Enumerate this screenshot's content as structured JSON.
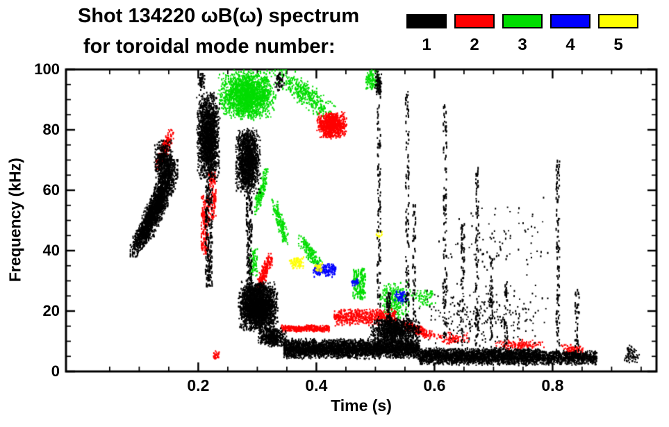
{
  "chart_data": {
    "type": "scatter",
    "subtype": "mode-spectrogram",
    "title": "Shot 134220 ωB(ω) spectrum",
    "subtitle": "for toroidal mode number:",
    "xlabel": "Time (s)",
    "ylabel": "Frequency (kHz)",
    "xlim": [
      -0.024,
      0.976
    ],
    "ylim": [
      0,
      100
    ],
    "x_minor_step": 0.05,
    "y_minor_step": 5,
    "grid": false,
    "legend_position": "top-right",
    "xticks": [
      {
        "v": 0.2,
        "label": "0.2"
      },
      {
        "v": 0.4,
        "label": "0.4"
      },
      {
        "v": 0.6,
        "label": "0.6"
      },
      {
        "v": 0.8,
        "label": "0.8"
      }
    ],
    "yticks": [
      {
        "v": 0,
        "label": "0"
      },
      {
        "v": 20,
        "label": "20"
      },
      {
        "v": 40,
        "label": "40"
      },
      {
        "v": 60,
        "label": "60"
      },
      {
        "v": 80,
        "label": "80"
      },
      {
        "v": 100,
        "label": "100"
      }
    ],
    "series": [
      {
        "name": "1",
        "mode": 1,
        "color": "#000000",
        "clusters": [
          {
            "shape": "diag",
            "t": [
              0.085,
              0.135
            ],
            "f": [
              38,
              56
            ],
            "n": 700
          },
          {
            "shape": "diag",
            "t": [
              0.105,
              0.165
            ],
            "f": [
              44,
              70
            ],
            "n": 1500
          },
          {
            "shape": "blob",
            "t": [
              0.125,
              0.158
            ],
            "f": [
              62,
              77
            ],
            "n": 450
          },
          {
            "shape": "blob",
            "t": [
              0.197,
              0.237
            ],
            "f": [
              62,
              93
            ],
            "n": 1900
          },
          {
            "shape": "vline",
            "t": [
              0.212,
              0.224
            ],
            "f": [
              28,
              62
            ],
            "n": 200
          },
          {
            "shape": "blob",
            "t": [
              0.199,
              0.212
            ],
            "f": [
              93,
              99
            ],
            "n": 60
          },
          {
            "shape": "blob",
            "t": [
              0.262,
              0.306
            ],
            "f": [
              58,
              81
            ],
            "n": 1500
          },
          {
            "shape": "vline",
            "t": [
              0.281,
              0.291
            ],
            "f": [
              25,
              58
            ],
            "n": 170
          },
          {
            "shape": "blob",
            "t": [
              0.267,
              0.336
            ],
            "f": [
              13,
              30
            ],
            "n": 2600
          },
          {
            "shape": "blob",
            "t": [
              0.3,
              0.35
            ],
            "f": [
              8,
              15
            ],
            "n": 500
          },
          {
            "shape": "blob",
            "t": [
              0.33,
              0.347
            ],
            "f": [
              92,
              100
            ],
            "n": 60
          },
          {
            "shape": "band",
            "t": [
              0.345,
              0.575
            ],
            "f": [
              4,
              11
            ],
            "n": 3600
          },
          {
            "shape": "blob",
            "t": [
              0.49,
              0.578
            ],
            "f": [
              9,
              18
            ],
            "n": 1000
          },
          {
            "shape": "vline",
            "t": [
              0.519,
              0.526
            ],
            "f": [
              15,
              26
            ],
            "n": 60
          },
          {
            "shape": "band",
            "t": [
              0.575,
              0.78
            ],
            "f": [
              2,
              8
            ],
            "n": 2500
          },
          {
            "shape": "band",
            "t": [
              0.78,
              0.875
            ],
            "f": [
              2,
              7
            ],
            "n": 800
          },
          {
            "shape": "blob",
            "t": [
              0.92,
              0.947
            ],
            "f": [
              2,
              9
            ],
            "n": 70
          },
          {
            "shape": "vline",
            "t": [
              0.503,
              0.509
            ],
            "f": [
              10,
              98
            ],
            "n": 130
          },
          {
            "shape": "blob",
            "t": [
              0.499,
              0.511
            ],
            "f": [
              91,
              100
            ],
            "n": 80
          },
          {
            "shape": "vline",
            "t": [
              0.551,
              0.557
            ],
            "f": [
              10,
              93
            ],
            "n": 120
          },
          {
            "shape": "vline",
            "t": [
              0.563,
              0.568
            ],
            "f": [
              10,
              55
            ],
            "n": 60
          },
          {
            "shape": "vline",
            "t": [
              0.615,
              0.621
            ],
            "f": [
              10,
              88
            ],
            "n": 110
          },
          {
            "shape": "vline",
            "t": [
              0.645,
              0.651
            ],
            "f": [
              8,
              50
            ],
            "n": 60
          },
          {
            "shape": "vline",
            "t": [
              0.669,
              0.675
            ],
            "f": [
              8,
              68
            ],
            "n": 90
          },
          {
            "shape": "vline",
            "t": [
              0.693,
              0.699
            ],
            "f": [
              8,
              38
            ],
            "n": 50
          },
          {
            "shape": "vline",
            "t": [
              0.718,
              0.724
            ],
            "f": [
              8,
              30
            ],
            "n": 40
          },
          {
            "shape": "vline",
            "t": [
              0.806,
              0.812
            ],
            "f": [
              5,
              70
            ],
            "n": 110
          },
          {
            "shape": "vline",
            "t": [
              0.838,
              0.845
            ],
            "f": [
              5,
              28
            ],
            "n": 45
          },
          {
            "shape": "blob",
            "t": [
              0.56,
              0.8
            ],
            "f": [
              8,
              30
            ],
            "n": 260
          },
          {
            "shape": "blob",
            "t": [
              0.6,
              0.8
            ],
            "f": [
              30,
              58
            ],
            "n": 90
          }
        ]
      },
      {
        "name": "2",
        "mode": 2,
        "color": "#ff0000",
        "clusters": [
          {
            "shape": "diag",
            "t": [
              0.128,
              0.158
            ],
            "f": [
              67,
              80
            ],
            "n": 230
          },
          {
            "shape": "vline",
            "t": [
              0.205,
              0.218
            ],
            "f": [
              38,
              58
            ],
            "n": 140
          },
          {
            "shape": "vline",
            "t": [
              0.218,
              0.23
            ],
            "f": [
              50,
              66
            ],
            "n": 100
          },
          {
            "shape": "diag",
            "t": [
              0.298,
              0.325
            ],
            "f": [
              26,
              39
            ],
            "n": 220
          },
          {
            "shape": "blob",
            "t": [
              0.4,
              0.452
            ],
            "f": [
              77,
              86
            ],
            "n": 850
          },
          {
            "shape": "band",
            "t": [
              0.34,
              0.422
            ],
            "f": [
              13,
              15.5
            ],
            "n": 380
          },
          {
            "shape": "band",
            "t": [
              0.43,
              0.535
            ],
            "f": [
              15,
              21
            ],
            "n": 560
          },
          {
            "shape": "diagdown",
            "t": [
              0.535,
              0.6
            ],
            "f": [
              11,
              17
            ],
            "n": 260
          },
          {
            "shape": "blob",
            "t": [
              0.6,
              0.66
            ],
            "f": [
              9,
              13
            ],
            "n": 90
          },
          {
            "shape": "blob",
            "t": [
              0.7,
              0.79
            ],
            "f": [
              7,
              11
            ],
            "n": 130
          },
          {
            "shape": "blob",
            "t": [
              0.815,
              0.855
            ],
            "f": [
              5,
              9
            ],
            "n": 100
          },
          {
            "shape": "blob",
            "t": [
              0.225,
              0.237
            ],
            "f": [
              4,
              7
            ],
            "n": 30
          }
        ]
      },
      {
        "name": "3",
        "mode": 3,
        "color": "#00dd00",
        "clusters": [
          {
            "shape": "blob",
            "t": [
              0.233,
              0.332
            ],
            "f": [
              83,
              100
            ],
            "n": 1900
          },
          {
            "shape": "diagdown",
            "t": [
              0.33,
              0.432
            ],
            "f": [
              84,
              100
            ],
            "n": 380
          },
          {
            "shape": "diag",
            "t": [
              0.295,
              0.318
            ],
            "f": [
              52,
              67
            ],
            "n": 170
          },
          {
            "shape": "diagdown",
            "t": [
              0.325,
              0.352
            ],
            "f": [
              42,
              57
            ],
            "n": 150
          },
          {
            "shape": "diagdown",
            "t": [
              0.37,
              0.41
            ],
            "f": [
              33,
              45
            ],
            "n": 170
          },
          {
            "shape": "vline",
            "t": [
              0.462,
              0.483
            ],
            "f": [
              24,
              34
            ],
            "n": 150
          },
          {
            "shape": "blob",
            "t": [
              0.505,
              0.562
            ],
            "f": [
              17,
              30
            ],
            "n": 260
          },
          {
            "shape": "blob",
            "t": [
              0.482,
              0.507
            ],
            "f": [
              93,
              100
            ],
            "n": 110
          },
          {
            "shape": "blob",
            "t": [
              0.285,
              0.302
            ],
            "f": [
              30,
              42
            ],
            "n": 90
          },
          {
            "shape": "blob",
            "t": [
              0.56,
              0.605
            ],
            "f": [
              20,
              28
            ],
            "n": 70
          }
        ]
      },
      {
        "name": "4",
        "mode": 4,
        "color": "#0000ff",
        "clusters": [
          {
            "shape": "band",
            "t": [
              0.395,
              0.433
            ],
            "f": [
              31,
              36
            ],
            "n": 170
          },
          {
            "shape": "blob",
            "t": [
              0.528,
              0.556
            ],
            "f": [
              22,
              27
            ],
            "n": 55
          },
          {
            "shape": "blob",
            "t": [
              0.458,
              0.472
            ],
            "f": [
              28,
              31
            ],
            "n": 30
          }
        ]
      },
      {
        "name": "5",
        "mode": 5,
        "color": "#ffff00",
        "clusters": [
          {
            "shape": "blob",
            "t": [
              0.353,
              0.38
            ],
            "f": [
              34,
              38
            ],
            "n": 80
          },
          {
            "shape": "blob",
            "t": [
              0.395,
              0.412
            ],
            "f": [
              33,
              36
            ],
            "n": 35
          },
          {
            "shape": "blob",
            "t": [
              0.5,
              0.512
            ],
            "f": [
              44,
              47
            ],
            "n": 15
          }
        ]
      }
    ]
  }
}
